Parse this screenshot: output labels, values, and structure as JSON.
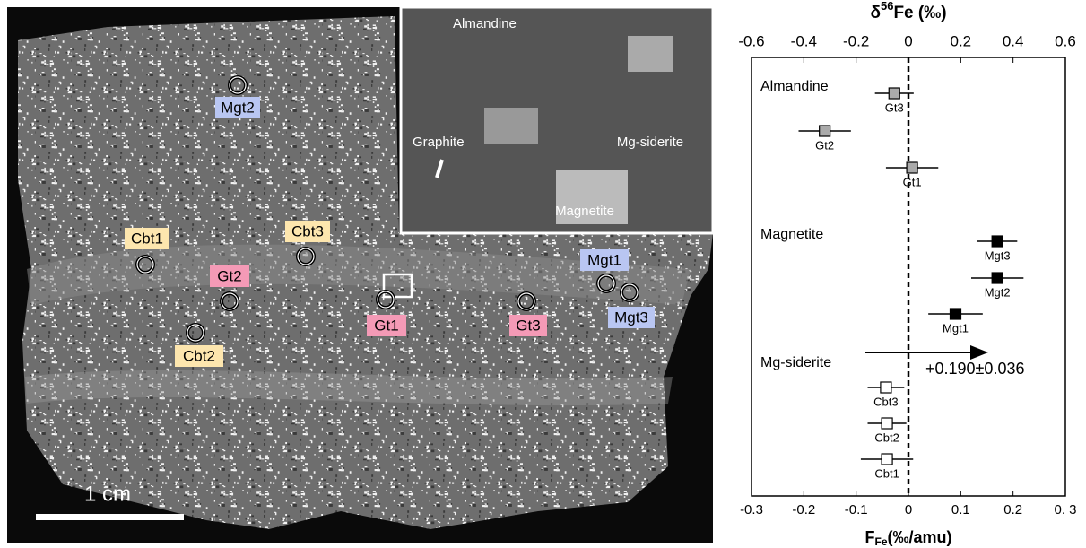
{
  "image": {
    "spots": [
      "Mgt2",
      "Cbt1",
      "Cbt3",
      "Gt2",
      "Gt1",
      "Gt3",
      "Mgt1",
      "Mgt3",
      "Cbt2"
    ],
    "scale_bar": "1 cm",
    "inset_labels": [
      "Almandine",
      "Graphite",
      "Mg-siderite",
      "Magnetite"
    ]
  },
  "chart_data": {
    "type": "dot-errorbar",
    "x2label": {
      "main": "δ",
      "sup": "56",
      "rest": "Fe (‰)"
    },
    "xlabel": {
      "main": "F",
      "sub": "Fe",
      "rest": "(‰/amu)"
    },
    "xlim": [
      -0.3,
      0.3
    ],
    "xticks": [
      -0.3,
      -0.2,
      -0.1,
      0,
      0.1,
      0.2,
      {
        "value": 0.3,
        "label": "0. 3"
      }
    ],
    "x2lim": [
      -0.6,
      0.6
    ],
    "x2ticks": [
      -0.6,
      -0.4,
      -0.2,
      0,
      0.2,
      0.4,
      0.6
    ],
    "series": [
      {
        "name": "Almandine",
        "color": "#aaaaaa",
        "labels": [
          "Gt3",
          "Gt2",
          "Gt1"
        ],
        "values": [
          -0.027,
          -0.16,
          0.007
        ],
        "errors": [
          0.037,
          0.05,
          0.05
        ]
      },
      {
        "name": "Magnetite",
        "color": "#000000",
        "labels": [
          "Mgt3",
          "Mgt2",
          "Mgt1"
        ],
        "values": [
          0.17,
          0.17,
          0.09
        ],
        "errors": [
          0.038,
          0.05,
          0.052
        ]
      },
      {
        "name": "Mg-siderite",
        "color": "#ffffff",
        "labels": [
          "Cbt3",
          "Cbt2",
          "Cbt1"
        ],
        "values": [
          -0.043,
          -0.041,
          -0.041
        ],
        "errors": [
          0.035,
          0.037,
          0.05
        ]
      }
    ],
    "annotation": "+0.190±0.036"
  }
}
